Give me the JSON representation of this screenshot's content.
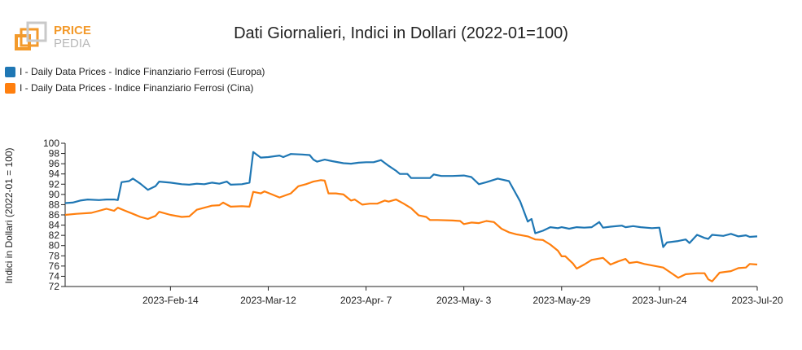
{
  "header": {
    "logo_top": "PRICE",
    "logo_bottom": "PEDIA",
    "title": "Dati Giornalieri, Indici in Dollari (2022-01=100)"
  },
  "colors": {
    "europa": "#1f77b4",
    "cina": "#ff7f0e",
    "logo_orange": "#f39a2b",
    "logo_gray": "#b8b8b8"
  },
  "chart_data": {
    "type": "line",
    "title": "Dati Giornalieri, Indici in Dollari (2022-01=100)",
    "ylabel": "Indici in Dollari (2022-01 = 100)",
    "xlabel": "",
    "ylim": [
      72,
      100
    ],
    "yticks": [
      72,
      74,
      76,
      78,
      80,
      82,
      84,
      86,
      88,
      90,
      92,
      94,
      96,
      98,
      100
    ],
    "xlim": [
      "2023-01-17",
      "2023-07-20"
    ],
    "xticks": [
      {
        "date": "2023-02-14",
        "label": "2023-Feb-14"
      },
      {
        "date": "2023-03-12",
        "label": "2023-Mar-12"
      },
      {
        "date": "2023-04-07",
        "label": "2023-Apr- 7"
      },
      {
        "date": "2023-05-03",
        "label": "2023-May- 3"
      },
      {
        "date": "2023-05-29",
        "label": "2023-May-29"
      },
      {
        "date": "2023-06-24",
        "label": "2023-Jun-24"
      },
      {
        "date": "2023-07-20",
        "label": "2023-Jul-20"
      }
    ],
    "legend": "top-left",
    "grid": false,
    "series": [
      {
        "name": "I - Daily Data Prices - Indice Finanziario Ferrosi (Europa)",
        "color": "#1f77b4",
        "points": [
          [
            "2023-01-17",
            88.3
          ],
          [
            "2023-01-19",
            88.4
          ],
          [
            "2023-01-21",
            88.8
          ],
          [
            "2023-01-23",
            89.0
          ],
          [
            "2023-01-26",
            88.9
          ],
          [
            "2023-01-28",
            89.0
          ],
          [
            "2023-01-30",
            89.0
          ],
          [
            "2023-01-31",
            88.9
          ],
          [
            "2023-02-01",
            92.4
          ],
          [
            "2023-02-03",
            92.6
          ],
          [
            "2023-02-04",
            93.1
          ],
          [
            "2023-02-06",
            92.1
          ],
          [
            "2023-02-08",
            90.9
          ],
          [
            "2023-02-10",
            91.6
          ],
          [
            "2023-02-11",
            92.5
          ],
          [
            "2023-02-14",
            92.3
          ],
          [
            "2023-02-17",
            92.0
          ],
          [
            "2023-02-19",
            91.9
          ],
          [
            "2023-02-21",
            92.1
          ],
          [
            "2023-02-23",
            92.0
          ],
          [
            "2023-02-25",
            92.3
          ],
          [
            "2023-02-27",
            92.1
          ],
          [
            "2023-03-01",
            92.5
          ],
          [
            "2023-03-02",
            91.9
          ],
          [
            "2023-03-05",
            92.0
          ],
          [
            "2023-03-07",
            92.3
          ],
          [
            "2023-03-08",
            98.3
          ],
          [
            "2023-03-10",
            97.2
          ],
          [
            "2023-03-12",
            97.3
          ],
          [
            "2023-03-15",
            97.6
          ],
          [
            "2023-03-16",
            97.3
          ],
          [
            "2023-03-18",
            97.9
          ],
          [
            "2023-03-21",
            97.8
          ],
          [
            "2023-03-23",
            97.7
          ],
          [
            "2023-03-24",
            96.8
          ],
          [
            "2023-03-25",
            96.4
          ],
          [
            "2023-03-27",
            96.8
          ],
          [
            "2023-03-29",
            96.5
          ],
          [
            "2023-04-01",
            96.1
          ],
          [
            "2023-04-03",
            96.0
          ],
          [
            "2023-04-05",
            96.2
          ],
          [
            "2023-04-07",
            96.3
          ],
          [
            "2023-04-09",
            96.3
          ],
          [
            "2023-04-11",
            96.7
          ],
          [
            "2023-04-13",
            95.6
          ],
          [
            "2023-04-15",
            94.6
          ],
          [
            "2023-04-16",
            94.0
          ],
          [
            "2023-04-18",
            94.0
          ],
          [
            "2023-04-19",
            93.2
          ],
          [
            "2023-04-22",
            93.2
          ],
          [
            "2023-04-24",
            93.2
          ],
          [
            "2023-04-25",
            93.9
          ],
          [
            "2023-04-27",
            93.6
          ],
          [
            "2023-04-30",
            93.6
          ],
          [
            "2023-05-03",
            93.7
          ],
          [
            "2023-05-05",
            93.4
          ],
          [
            "2023-05-07",
            92.0
          ],
          [
            "2023-05-09",
            92.4
          ],
          [
            "2023-05-12",
            93.1
          ],
          [
            "2023-05-15",
            92.6
          ],
          [
            "2023-05-18",
            88.6
          ],
          [
            "2023-05-20",
            84.7
          ],
          [
            "2023-05-21",
            85.2
          ],
          [
            "2023-05-22",
            82.4
          ],
          [
            "2023-05-24",
            82.9
          ],
          [
            "2023-05-26",
            83.6
          ],
          [
            "2023-05-28",
            83.4
          ],
          [
            "2023-05-29",
            83.6
          ],
          [
            "2023-05-31",
            83.3
          ],
          [
            "2023-06-02",
            83.6
          ],
          [
            "2023-06-04",
            83.5
          ],
          [
            "2023-06-06",
            83.6
          ],
          [
            "2023-06-08",
            84.6
          ],
          [
            "2023-06-09",
            83.5
          ],
          [
            "2023-06-11",
            83.7
          ],
          [
            "2023-06-14",
            83.9
          ],
          [
            "2023-06-15",
            83.6
          ],
          [
            "2023-06-17",
            83.8
          ],
          [
            "2023-06-19",
            83.6
          ],
          [
            "2023-06-22",
            83.4
          ],
          [
            "2023-06-24",
            83.5
          ],
          [
            "2023-06-25",
            79.7
          ],
          [
            "2023-06-26",
            80.6
          ],
          [
            "2023-06-29",
            80.9
          ],
          [
            "2023-07-01",
            81.2
          ],
          [
            "2023-07-02",
            80.5
          ],
          [
            "2023-07-04",
            82.1
          ],
          [
            "2023-07-06",
            81.5
          ],
          [
            "2023-07-07",
            81.3
          ],
          [
            "2023-07-08",
            82.1
          ],
          [
            "2023-07-11",
            81.9
          ],
          [
            "2023-07-13",
            82.3
          ],
          [
            "2023-07-15",
            81.8
          ],
          [
            "2023-07-17",
            82.0
          ],
          [
            "2023-07-18",
            81.7
          ],
          [
            "2023-07-20",
            81.8
          ]
        ]
      },
      {
        "name": "I - Daily Data Prices - Indice Finanziario Ferrosi (Cina)",
        "color": "#ff7f0e",
        "points": [
          [
            "2023-01-17",
            86.0
          ],
          [
            "2023-01-20",
            86.2
          ],
          [
            "2023-01-24",
            86.4
          ],
          [
            "2023-01-26",
            86.8
          ],
          [
            "2023-01-28",
            87.2
          ],
          [
            "2023-01-30",
            86.8
          ],
          [
            "2023-01-31",
            87.4
          ],
          [
            "2023-02-02",
            86.8
          ],
          [
            "2023-02-04",
            86.2
          ],
          [
            "2023-02-06",
            85.6
          ],
          [
            "2023-02-08",
            85.2
          ],
          [
            "2023-02-10",
            85.8
          ],
          [
            "2023-02-11",
            86.6
          ],
          [
            "2023-02-14",
            86.0
          ],
          [
            "2023-02-17",
            85.6
          ],
          [
            "2023-02-19",
            85.7
          ],
          [
            "2023-02-21",
            87.0
          ],
          [
            "2023-02-23",
            87.4
          ],
          [
            "2023-02-25",
            87.8
          ],
          [
            "2023-02-27",
            87.9
          ],
          [
            "2023-02-28",
            88.4
          ],
          [
            "2023-03-02",
            87.6
          ],
          [
            "2023-03-05",
            87.7
          ],
          [
            "2023-03-07",
            87.6
          ],
          [
            "2023-03-08",
            90.5
          ],
          [
            "2023-03-10",
            90.2
          ],
          [
            "2023-03-11",
            90.6
          ],
          [
            "2023-03-13",
            90.0
          ],
          [
            "2023-03-15",
            89.4
          ],
          [
            "2023-03-18",
            90.2
          ],
          [
            "2023-03-20",
            91.6
          ],
          [
            "2023-03-22",
            92.0
          ],
          [
            "2023-03-24",
            92.5
          ],
          [
            "2023-03-26",
            92.8
          ],
          [
            "2023-03-27",
            92.7
          ],
          [
            "2023-03-28",
            90.2
          ],
          [
            "2023-03-30",
            90.2
          ],
          [
            "2023-04-01",
            90.0
          ],
          [
            "2023-04-03",
            88.8
          ],
          [
            "2023-04-04",
            89.0
          ],
          [
            "2023-04-06",
            88.0
          ],
          [
            "2023-04-08",
            88.2
          ],
          [
            "2023-04-10",
            88.2
          ],
          [
            "2023-04-12",
            88.8
          ],
          [
            "2023-04-13",
            88.6
          ],
          [
            "2023-04-15",
            89.0
          ],
          [
            "2023-04-17",
            88.2
          ],
          [
            "2023-04-19",
            87.3
          ],
          [
            "2023-04-21",
            85.9
          ],
          [
            "2023-04-23",
            85.6
          ],
          [
            "2023-04-24",
            85.0
          ],
          [
            "2023-04-26",
            85.0
          ],
          [
            "2023-04-30",
            84.9
          ],
          [
            "2023-05-02",
            84.8
          ],
          [
            "2023-05-03",
            84.2
          ],
          [
            "2023-05-05",
            84.5
          ],
          [
            "2023-05-07",
            84.4
          ],
          [
            "2023-05-09",
            84.8
          ],
          [
            "2023-05-11",
            84.6
          ],
          [
            "2023-05-13",
            83.3
          ],
          [
            "2023-05-15",
            82.6
          ],
          [
            "2023-05-17",
            82.2
          ],
          [
            "2023-05-20",
            81.8
          ],
          [
            "2023-05-22",
            81.2
          ],
          [
            "2023-05-24",
            81.1
          ],
          [
            "2023-05-26",
            80.2
          ],
          [
            "2023-05-28",
            79.0
          ],
          [
            "2023-05-29",
            77.9
          ],
          [
            "2023-05-30",
            77.9
          ],
          [
            "2023-06-01",
            76.5
          ],
          [
            "2023-06-02",
            75.5
          ],
          [
            "2023-06-04",
            76.3
          ],
          [
            "2023-06-06",
            77.2
          ],
          [
            "2023-06-09",
            77.6
          ],
          [
            "2023-06-11",
            76.3
          ],
          [
            "2023-06-13",
            76.9
          ],
          [
            "2023-06-15",
            77.4
          ],
          [
            "2023-06-16",
            76.6
          ],
          [
            "2023-06-18",
            76.8
          ],
          [
            "2023-06-20",
            76.4
          ],
          [
            "2023-06-23",
            76.0
          ],
          [
            "2023-06-25",
            75.7
          ],
          [
            "2023-06-27",
            74.7
          ],
          [
            "2023-06-29",
            73.7
          ],
          [
            "2023-07-01",
            74.4
          ],
          [
            "2023-07-04",
            74.6
          ],
          [
            "2023-07-06",
            74.6
          ],
          [
            "2023-07-07",
            73.4
          ],
          [
            "2023-07-08",
            73.0
          ],
          [
            "2023-07-10",
            74.7
          ],
          [
            "2023-07-13",
            75.0
          ],
          [
            "2023-07-15",
            75.6
          ],
          [
            "2023-07-17",
            75.7
          ],
          [
            "2023-07-18",
            76.4
          ],
          [
            "2023-07-20",
            76.3
          ]
        ]
      }
    ]
  }
}
